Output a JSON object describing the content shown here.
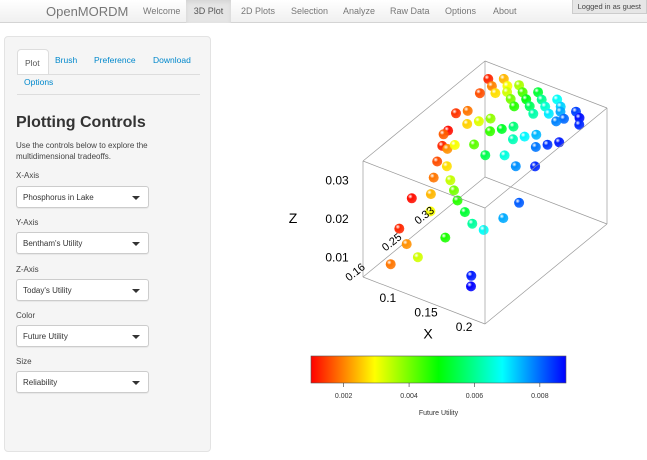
{
  "navbar": {
    "brand": "OpenMORDM",
    "items": [
      {
        "label": "Welcome"
      },
      {
        "label": "3D Plot"
      },
      {
        "label": "2D Plots"
      },
      {
        "label": "Selection"
      },
      {
        "label": "Analyze"
      },
      {
        "label": "Raw Data"
      },
      {
        "label": "Options"
      },
      {
        "label": "About"
      }
    ],
    "active": "3D Plot",
    "login_status": "Logged in as guest"
  },
  "sidebar": {
    "tabs": [
      {
        "label": "Plot"
      },
      {
        "label": "Brush"
      },
      {
        "label": "Preference"
      },
      {
        "label": "Download"
      },
      {
        "label": "Options"
      }
    ],
    "active_tab": "Plot",
    "heading": "Plotting Controls",
    "description": "Use the controls below to explore the multidimensional tradeoffs.",
    "controls": [
      {
        "label": "X-Axis",
        "value": "Phosphorus in Lake"
      },
      {
        "label": "Y-Axis",
        "value": "Bentham's Utility"
      },
      {
        "label": "Z-Axis",
        "value": "Today's Utility"
      },
      {
        "label": "Color",
        "value": "Future Utility"
      },
      {
        "label": "Size",
        "value": "Reliability"
      }
    ]
  },
  "chart_data": {
    "type": "scatter",
    "dimensions": 3,
    "axes": {
      "x": {
        "label": "X",
        "ticks": [
          "0.1",
          "0.15",
          "0.2"
        ],
        "range": [
          0.07,
          0.23
        ]
      },
      "y": {
        "label": "",
        "ticks": [
          "0.16",
          "0.25",
          "0.33"
        ],
        "range": [
          0.1,
          0.4
        ]
      },
      "z": {
        "label": "Z",
        "ticks": [
          "0.01",
          "0.02",
          "0.03"
        ],
        "range": [
          0.005,
          0.035
        ]
      }
    },
    "colorbar": {
      "label": "Future Utility",
      "ticks": [
        "0.002",
        "0.004",
        "0.006",
        "0.008"
      ],
      "range": [
        0.001,
        0.0088
      ],
      "colormap": [
        "#ff0000",
        "#ffff00",
        "#00ff00",
        "#00ffff",
        "#0000ff"
      ]
    },
    "points": [
      {
        "x": 0.215,
        "y": 0.36,
        "z": 0.033,
        "c": 0.0085
      },
      {
        "x": 0.21,
        "y": 0.37,
        "z": 0.0335,
        "c": 0.0087
      },
      {
        "x": 0.2,
        "y": 0.38,
        "z": 0.0335,
        "c": 0.0083
      },
      {
        "x": 0.195,
        "y": 0.36,
        "z": 0.033,
        "c": 0.008
      },
      {
        "x": 0.19,
        "y": 0.35,
        "z": 0.0328,
        "c": 0.0078
      },
      {
        "x": 0.185,
        "y": 0.37,
        "z": 0.0332,
        "c": 0.0075
      },
      {
        "x": 0.18,
        "y": 0.38,
        "z": 0.0333,
        "c": 0.0072
      },
      {
        "x": 0.175,
        "y": 0.36,
        "z": 0.0328,
        "c": 0.007
      },
      {
        "x": 0.17,
        "y": 0.39,
        "z": 0.0335,
        "c": 0.0068
      },
      {
        "x": 0.165,
        "y": 0.37,
        "z": 0.033,
        "c": 0.0065
      },
      {
        "x": 0.16,
        "y": 0.35,
        "z": 0.0325,
        "c": 0.0062
      },
      {
        "x": 0.155,
        "y": 0.38,
        "z": 0.0332,
        "c": 0.006
      },
      {
        "x": 0.15,
        "y": 0.36,
        "z": 0.0328,
        "c": 0.0056
      },
      {
        "x": 0.145,
        "y": 0.39,
        "z": 0.0335,
        "c": 0.0053
      },
      {
        "x": 0.14,
        "y": 0.37,
        "z": 0.033,
        "c": 0.005
      },
      {
        "x": 0.135,
        "y": 0.35,
        "z": 0.0325,
        "c": 0.0046
      },
      {
        "x": 0.13,
        "y": 0.38,
        "z": 0.0332,
        "c": 0.0043
      },
      {
        "x": 0.125,
        "y": 0.36,
        "z": 0.0328,
        "c": 0.004
      },
      {
        "x": 0.12,
        "y": 0.39,
        "z": 0.0334,
        "c": 0.0036
      },
      {
        "x": 0.115,
        "y": 0.37,
        "z": 0.033,
        "c": 0.0033
      },
      {
        "x": 0.11,
        "y": 0.38,
        "z": 0.0333,
        "c": 0.003
      },
      {
        "x": 0.105,
        "y": 0.36,
        "z": 0.0328,
        "c": 0.0027
      },
      {
        "x": 0.1,
        "y": 0.39,
        "z": 0.0335,
        "c": 0.0024
      },
      {
        "x": 0.095,
        "y": 0.37,
        "z": 0.033,
        "c": 0.002
      },
      {
        "x": 0.09,
        "y": 0.35,
        "z": 0.0325,
        "c": 0.0016
      },
      {
        "x": 0.085,
        "y": 0.38,
        "z": 0.0332,
        "c": 0.0013
      },
      {
        "x": 0.21,
        "y": 0.32,
        "z": 0.0315,
        "c": 0.0086
      },
      {
        "x": 0.2,
        "y": 0.31,
        "z": 0.031,
        "c": 0.0084
      },
      {
        "x": 0.19,
        "y": 0.3,
        "z": 0.0305,
        "c": 0.0079
      },
      {
        "x": 0.18,
        "y": 0.32,
        "z": 0.0312,
        "c": 0.0074
      },
      {
        "x": 0.17,
        "y": 0.31,
        "z": 0.0308,
        "c": 0.0069
      },
      {
        "x": 0.16,
        "y": 0.3,
        "z": 0.0302,
        "c": 0.0063
      },
      {
        "x": 0.15,
        "y": 0.32,
        "z": 0.031,
        "c": 0.0058
      },
      {
        "x": 0.14,
        "y": 0.31,
        "z": 0.0305,
        "c": 0.0052
      },
      {
        "x": 0.13,
        "y": 0.3,
        "z": 0.03,
        "c": 0.0045
      },
      {
        "x": 0.12,
        "y": 0.32,
        "z": 0.0308,
        "c": 0.0038
      },
      {
        "x": 0.11,
        "y": 0.31,
        "z": 0.0302,
        "c": 0.0032
      },
      {
        "x": 0.1,
        "y": 0.3,
        "z": 0.0296,
        "c": 0.0026
      },
      {
        "x": 0.09,
        "y": 0.32,
        "z": 0.0305,
        "c": 0.0019
      },
      {
        "x": 0.08,
        "y": 0.31,
        "z": 0.03,
        "c": 0.0014
      },
      {
        "x": 0.205,
        "y": 0.27,
        "z": 0.0292,
        "c": 0.0085
      },
      {
        "x": 0.185,
        "y": 0.26,
        "z": 0.0286,
        "c": 0.0077
      },
      {
        "x": 0.165,
        "y": 0.27,
        "z": 0.029,
        "c": 0.0066
      },
      {
        "x": 0.145,
        "y": 0.26,
        "z": 0.0284,
        "c": 0.0055
      },
      {
        "x": 0.125,
        "y": 0.27,
        "z": 0.0288,
        "c": 0.0042
      },
      {
        "x": 0.105,
        "y": 0.26,
        "z": 0.028,
        "c": 0.003
      },
      {
        "x": 0.085,
        "y": 0.27,
        "z": 0.0284,
        "c": 0.0017
      },
      {
        "x": 0.075,
        "y": 0.3,
        "z": 0.026,
        "c": 0.0011
      },
      {
        "x": 0.078,
        "y": 0.28,
        "z": 0.024,
        "c": 0.0013
      },
      {
        "x": 0.082,
        "y": 0.26,
        "z": 0.022,
        "c": 0.0016
      },
      {
        "x": 0.088,
        "y": 0.24,
        "z": 0.02,
        "c": 0.0019
      },
      {
        "x": 0.095,
        "y": 0.22,
        "z": 0.018,
        "c": 0.0024
      },
      {
        "x": 0.105,
        "y": 0.2,
        "z": 0.016,
        "c": 0.003
      },
      {
        "x": 0.09,
        "y": 0.27,
        "z": 0.025,
        "c": 0.0021
      },
      {
        "x": 0.1,
        "y": 0.25,
        "z": 0.023,
        "c": 0.0027
      },
      {
        "x": 0.11,
        "y": 0.24,
        "z": 0.021,
        "c": 0.0034
      },
      {
        "x": 0.12,
        "y": 0.23,
        "z": 0.02,
        "c": 0.004
      },
      {
        "x": 0.13,
        "y": 0.22,
        "z": 0.019,
        "c": 0.0046
      },
      {
        "x": 0.145,
        "y": 0.21,
        "z": 0.018,
        "c": 0.0053
      },
      {
        "x": 0.16,
        "y": 0.2,
        "z": 0.017,
        "c": 0.0061
      },
      {
        "x": 0.175,
        "y": 0.2,
        "z": 0.0165,
        "c": 0.0068
      },
      {
        "x": 0.19,
        "y": 0.22,
        "z": 0.019,
        "c": 0.0075
      },
      {
        "x": 0.2,
        "y": 0.24,
        "z": 0.022,
        "c": 0.0081
      },
      {
        "x": 0.07,
        "y": 0.22,
        "z": 0.015,
        "c": 0.0011
      },
      {
        "x": 0.075,
        "y": 0.18,
        "z": 0.011,
        "c": 0.0013
      },
      {
        "x": 0.09,
        "y": 0.17,
        "z": 0.009,
        "c": 0.0021
      },
      {
        "x": 0.11,
        "y": 0.16,
        "z": 0.008,
        "c": 0.0033
      },
      {
        "x": 0.085,
        "y": 0.14,
        "z": 0.006,
        "c": 0.0019
      },
      {
        "x": 0.13,
        "y": 0.19,
        "z": 0.012,
        "c": 0.0047
      },
      {
        "x": 0.18,
        "y": 0.16,
        "z": 0.0085,
        "c": 0.0086
      },
      {
        "x": 0.185,
        "y": 0.15,
        "z": 0.007,
        "c": 0.0088
      }
    ]
  }
}
